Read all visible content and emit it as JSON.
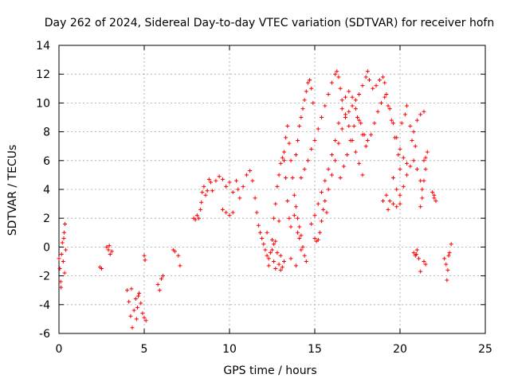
{
  "chart_data": {
    "type": "scatter",
    "title": "Day 262 of 2024, Sidereal Day-to-day VTEC variation (SDTVAR) for receiver hofn",
    "xlabel": "GPS time / hours",
    "ylabel": "SDTVAR / TECUs",
    "xlim": [
      0,
      25
    ],
    "ylim": [
      -6,
      14
    ],
    "xticks": [
      0,
      5,
      10,
      15,
      20,
      25
    ],
    "yticks": [
      -6,
      -4,
      -2,
      0,
      2,
      4,
      6,
      8,
      10,
      12,
      14
    ],
    "grid": true,
    "marker": "+",
    "marker_color": "#ff0000",
    "series": [
      {
        "name": "SDTVAR",
        "points": [
          [
            0.0,
            -0.8
          ],
          [
            0.05,
            -1.5
          ],
          [
            0.1,
            -2.4
          ],
          [
            0.15,
            -0.5
          ],
          [
            0.2,
            0.3
          ],
          [
            0.25,
            -1.0
          ],
          [
            0.3,
            1.0
          ],
          [
            0.35,
            1.6
          ],
          [
            0.4,
            -0.2
          ],
          [
            0.12,
            -2.8
          ],
          [
            0.28,
            0.6
          ],
          [
            0.33,
            -1.8
          ],
          [
            2.4,
            -1.4
          ],
          [
            2.5,
            -1.5
          ],
          [
            2.8,
            0.0
          ],
          [
            2.9,
            -0.2
          ],
          [
            3.0,
            -0.5
          ],
          [
            3.1,
            -0.3
          ],
          [
            2.95,
            0.1
          ],
          [
            4.0,
            -3.0
          ],
          [
            4.1,
            -3.8
          ],
          [
            4.2,
            -4.8
          ],
          [
            4.3,
            -5.6
          ],
          [
            4.4,
            -4.4
          ],
          [
            4.5,
            -3.6
          ],
          [
            4.6,
            -4.2
          ],
          [
            4.7,
            -3.2
          ],
          [
            4.8,
            -3.9
          ],
          [
            4.9,
            -4.6
          ],
          [
            4.25,
            -2.9
          ],
          [
            4.55,
            -5.0
          ],
          [
            4.65,
            -3.4
          ],
          [
            5.0,
            -0.6
          ],
          [
            5.05,
            -0.9
          ],
          [
            5.1,
            -5.1
          ],
          [
            5.0,
            -4.9
          ],
          [
            5.8,
            -2.6
          ],
          [
            5.9,
            -3.0
          ],
          [
            6.0,
            -2.2
          ],
          [
            6.1,
            -2.0
          ],
          [
            6.7,
            -0.2
          ],
          [
            6.8,
            -0.3
          ],
          [
            7.0,
            -0.6
          ],
          [
            7.1,
            -1.3
          ],
          [
            7.9,
            2.0
          ],
          [
            8.0,
            1.9
          ],
          [
            8.1,
            2.2
          ],
          [
            8.2,
            2.0
          ],
          [
            8.3,
            2.6
          ],
          [
            8.35,
            3.1
          ],
          [
            8.4,
            3.8
          ],
          [
            8.5,
            4.2
          ],
          [
            8.6,
            3.6
          ],
          [
            8.7,
            3.9
          ],
          [
            8.8,
            4.7
          ],
          [
            8.9,
            4.5
          ],
          [
            9.0,
            3.9
          ],
          [
            9.2,
            4.6
          ],
          [
            9.4,
            4.9
          ],
          [
            9.6,
            4.7
          ],
          [
            9.8,
            4.2
          ],
          [
            10.0,
            4.5
          ],
          [
            10.2,
            3.8
          ],
          [
            10.4,
            4.6
          ],
          [
            10.5,
            4.0
          ],
          [
            10.6,
            3.4
          ],
          [
            9.6,
            2.6
          ],
          [
            9.8,
            2.4
          ],
          [
            10.0,
            2.2
          ],
          [
            10.2,
            2.4
          ],
          [
            10.8,
            4.2
          ],
          [
            11.0,
            5.0
          ],
          [
            11.2,
            5.3
          ],
          [
            11.35,
            4.6
          ],
          [
            11.5,
            3.4
          ],
          [
            11.6,
            2.4
          ],
          [
            11.7,
            1.5
          ],
          [
            11.8,
            1.0
          ],
          [
            11.9,
            0.6
          ],
          [
            12.0,
            0.2
          ],
          [
            12.1,
            -0.2
          ],
          [
            12.2,
            -0.6
          ],
          [
            12.3,
            -0.8
          ],
          [
            12.4,
            -0.4
          ],
          [
            12.5,
            -0.2
          ],
          [
            12.6,
            0.2
          ],
          [
            12.7,
            0.4
          ],
          [
            12.8,
            -0.4
          ],
          [
            12.9,
            -1.2
          ],
          [
            13.0,
            -1.6
          ],
          [
            13.1,
            -1.4
          ],
          [
            13.2,
            -1.0
          ],
          [
            12.3,
            -1.3
          ],
          [
            12.5,
            0.5
          ],
          [
            12.7,
            -1.5
          ],
          [
            12.9,
            1.8
          ],
          [
            13.0,
            -0.6
          ],
          [
            12.2,
            1.0
          ],
          [
            12.6,
            -1.0
          ],
          [
            12.6,
            2.0
          ],
          [
            12.7,
            3.0
          ],
          [
            12.8,
            4.2
          ],
          [
            12.9,
            5.0
          ],
          [
            13.0,
            5.8
          ],
          [
            13.1,
            6.2
          ],
          [
            13.2,
            6.0
          ],
          [
            13.3,
            4.8
          ],
          [
            13.4,
            3.2
          ],
          [
            13.5,
            2.0
          ],
          [
            13.6,
            1.4
          ],
          [
            13.2,
            6.6
          ],
          [
            13.3,
            7.6
          ],
          [
            13.4,
            8.4
          ],
          [
            13.5,
            7.2
          ],
          [
            13.6,
            6.0
          ],
          [
            13.7,
            4.8
          ],
          [
            13.8,
            3.6
          ],
          [
            13.9,
            2.8
          ],
          [
            14.0,
            2.0
          ],
          [
            14.1,
            1.4
          ],
          [
            14.2,
            0.8
          ],
          [
            14.3,
            0.0
          ],
          [
            14.4,
            -0.6
          ],
          [
            14.5,
            -1.0
          ],
          [
            13.8,
            2.2
          ],
          [
            14.0,
            1.0
          ],
          [
            14.2,
            -0.2
          ],
          [
            13.6,
            -0.8
          ],
          [
            14.1,
            0.6
          ],
          [
            13.9,
            -1.3
          ],
          [
            13.9,
            6.4
          ],
          [
            14.0,
            7.4
          ],
          [
            14.1,
            8.4
          ],
          [
            14.2,
            9.0
          ],
          [
            14.3,
            9.6
          ],
          [
            14.4,
            10.2
          ],
          [
            14.5,
            10.8
          ],
          [
            14.6,
            11.4
          ],
          [
            14.7,
            11.6
          ],
          [
            14.8,
            11.0
          ],
          [
            14.9,
            10.0
          ],
          [
            14.2,
            4.8
          ],
          [
            14.4,
            5.4
          ],
          [
            14.6,
            6.0
          ],
          [
            14.8,
            6.8
          ],
          [
            15.0,
            7.4
          ],
          [
            15.2,
            8.2
          ],
          [
            15.4,
            9.0
          ],
          [
            15.6,
            9.8
          ],
          [
            15.8,
            10.6
          ],
          [
            16.0,
            11.4
          ],
          [
            16.2,
            12.0
          ],
          [
            16.3,
            12.2
          ],
          [
            16.4,
            11.8
          ],
          [
            16.5,
            11.0
          ],
          [
            16.6,
            10.2
          ],
          [
            16.8,
            9.2
          ],
          [
            17.0,
            8.4
          ],
          [
            17.2,
            7.4
          ],
          [
            17.4,
            6.6
          ],
          [
            17.6,
            5.8
          ],
          [
            17.8,
            5.0
          ],
          [
            14.8,
            1.6
          ],
          [
            15.0,
            2.2
          ],
          [
            15.2,
            3.0
          ],
          [
            15.4,
            3.8
          ],
          [
            15.6,
            4.6
          ],
          [
            15.8,
            5.4
          ],
          [
            16.0,
            6.4
          ],
          [
            16.2,
            7.4
          ],
          [
            16.4,
            8.6
          ],
          [
            16.6,
            9.6
          ],
          [
            16.8,
            10.4
          ],
          [
            17.0,
            10.8
          ],
          [
            17.2,
            10.4
          ],
          [
            17.4,
            9.6
          ],
          [
            17.6,
            8.8
          ],
          [
            17.8,
            7.8
          ],
          [
            18.0,
            7.0
          ],
          [
            15.0,
            0.6
          ],
          [
            15.1,
            0.4
          ],
          [
            15.2,
            0.5
          ],
          [
            15.3,
            1.0
          ],
          [
            15.4,
            1.8
          ],
          [
            15.5,
            2.6
          ],
          [
            15.6,
            3.2
          ],
          [
            15.7,
            2.4
          ],
          [
            15.8,
            4.0
          ],
          [
            16.0,
            5.0
          ],
          [
            16.2,
            6.0
          ],
          [
            16.4,
            7.2
          ],
          [
            16.6,
            8.2
          ],
          [
            16.8,
            9.0
          ],
          [
            17.0,
            9.4
          ],
          [
            17.2,
            9.8
          ],
          [
            17.4,
            10.2
          ],
          [
            17.6,
            10.6
          ],
          [
            17.8,
            11.2
          ],
          [
            18.0,
            11.8
          ],
          [
            18.1,
            12.2
          ],
          [
            18.2,
            11.6
          ],
          [
            18.4,
            11.0
          ],
          [
            18.6,
            11.2
          ],
          [
            18.8,
            11.6
          ],
          [
            19.0,
            11.8
          ],
          [
            19.1,
            11.4
          ],
          [
            19.2,
            10.6
          ],
          [
            19.4,
            9.6
          ],
          [
            19.6,
            8.6
          ],
          [
            19.8,
            7.6
          ],
          [
            20.0,
            6.8
          ],
          [
            20.2,
            6.2
          ],
          [
            20.4,
            5.8
          ],
          [
            16.5,
            4.8
          ],
          [
            16.7,
            5.6
          ],
          [
            16.9,
            6.4
          ],
          [
            17.1,
            7.4
          ],
          [
            17.3,
            8.4
          ],
          [
            17.5,
            9.0
          ],
          [
            17.7,
            8.6
          ],
          [
            17.9,
            7.8
          ],
          [
            18.1,
            7.4
          ],
          [
            18.3,
            7.8
          ],
          [
            18.5,
            8.6
          ],
          [
            18.7,
            9.4
          ],
          [
            18.9,
            10.0
          ],
          [
            19.1,
            10.4
          ],
          [
            19.3,
            9.8
          ],
          [
            19.5,
            8.8
          ],
          [
            19.7,
            7.6
          ],
          [
            19.9,
            6.4
          ],
          [
            20.0,
            5.4
          ],
          [
            19.6,
            4.8
          ],
          [
            19.8,
            4.0
          ],
          [
            20.0,
            3.6
          ],
          [
            20.2,
            4.2
          ],
          [
            20.4,
            5.0
          ],
          [
            20.6,
            5.6
          ],
          [
            20.8,
            6.0
          ],
          [
            21.0,
            5.4
          ],
          [
            21.2,
            4.6
          ],
          [
            21.3,
            4.0
          ],
          [
            21.4,
            4.6
          ],
          [
            19.2,
            3.6
          ],
          [
            19.4,
            3.2
          ],
          [
            19.6,
            3.0
          ],
          [
            19.8,
            2.8
          ],
          [
            20.0,
            3.0
          ],
          [
            19.3,
            2.6
          ],
          [
            19.0,
            3.2
          ],
          [
            20.1,
            8.6
          ],
          [
            20.3,
            9.2
          ],
          [
            20.4,
            9.8
          ],
          [
            20.6,
            8.4
          ],
          [
            20.8,
            8.0
          ],
          [
            21.0,
            8.8
          ],
          [
            21.2,
            9.2
          ],
          [
            21.4,
            9.4
          ],
          [
            20.7,
            7.4
          ],
          [
            20.9,
            7.0
          ],
          [
            21.2,
            2.8
          ],
          [
            21.3,
            3.4
          ],
          [
            21.4,
            6.0
          ],
          [
            21.5,
            5.4
          ],
          [
            21.6,
            6.6
          ],
          [
            21.5,
            6.2
          ],
          [
            21.9,
            3.8
          ],
          [
            22.0,
            3.4
          ],
          [
            22.1,
            3.2
          ],
          [
            22.0,
            3.6
          ],
          [
            20.8,
            -0.4
          ],
          [
            20.9,
            -0.6
          ],
          [
            21.0,
            -0.2
          ],
          [
            21.1,
            -0.8
          ],
          [
            21.2,
            -1.7
          ],
          [
            20.95,
            -0.5
          ],
          [
            21.4,
            -1.0
          ],
          [
            21.5,
            -1.2
          ],
          [
            22.6,
            -0.8
          ],
          [
            22.7,
            -1.2
          ],
          [
            22.8,
            -1.6
          ],
          [
            22.9,
            -0.4
          ],
          [
            23.0,
            0.2
          ],
          [
            22.75,
            -2.3
          ],
          [
            22.85,
            -0.6
          ]
        ]
      }
    ]
  }
}
